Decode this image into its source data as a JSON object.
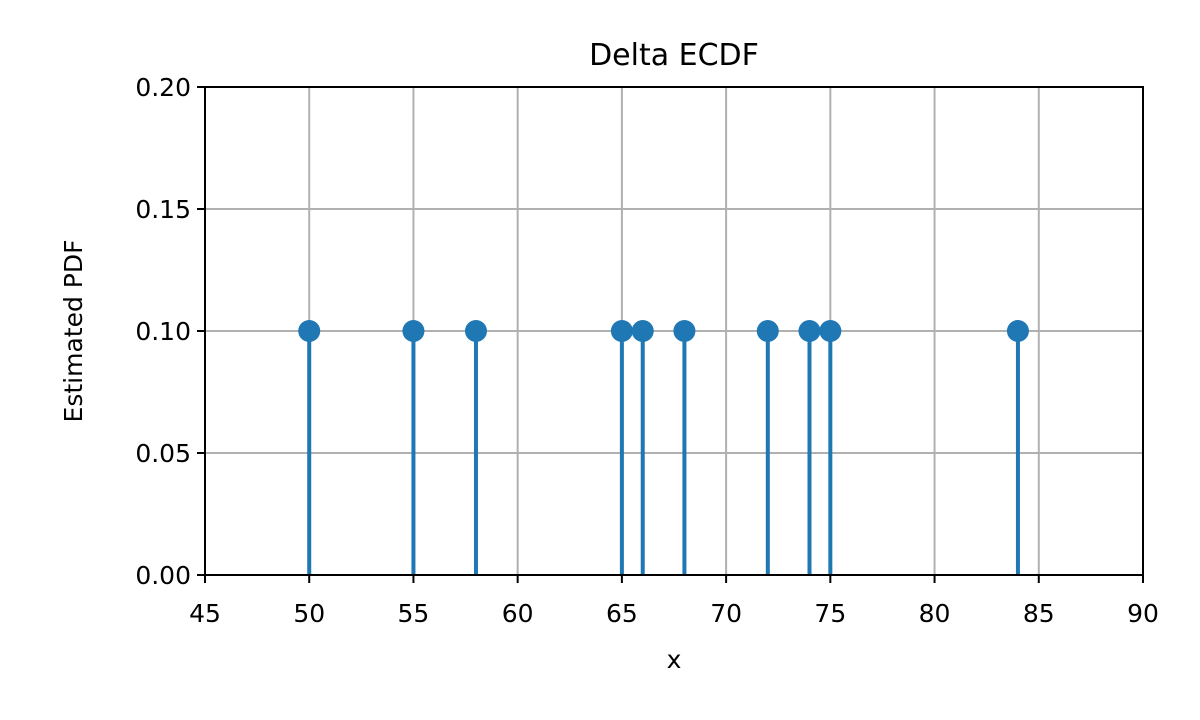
{
  "chart_data": {
    "type": "stem",
    "title": "Delta  ECDF",
    "xlabel": "x",
    "ylabel": "Estimated PDF",
    "xlim": [
      45,
      90
    ],
    "ylim": [
      0.0,
      0.2
    ],
    "xticks": [
      45,
      50,
      55,
      60,
      65,
      70,
      75,
      80,
      85,
      90
    ],
    "xtick_labels": [
      "45",
      "50",
      "55",
      "60",
      "65",
      "70",
      "75",
      "80",
      "85",
      "90"
    ],
    "yticks": [
      0.0,
      0.05,
      0.1,
      0.15,
      0.2
    ],
    "ytick_labels": [
      "0.00",
      "0.05",
      "0.10",
      "0.15",
      "0.20"
    ],
    "grid": true,
    "series": [
      {
        "x": [
          50,
          55,
          58,
          65,
          66,
          68,
          72,
          74,
          75,
          84
        ],
        "y": [
          0.1,
          0.1,
          0.1,
          0.1,
          0.1,
          0.1,
          0.1,
          0.1,
          0.1,
          0.1
        ],
        "color": "#1f77b4"
      }
    ],
    "baseline_color": "#d62728"
  }
}
